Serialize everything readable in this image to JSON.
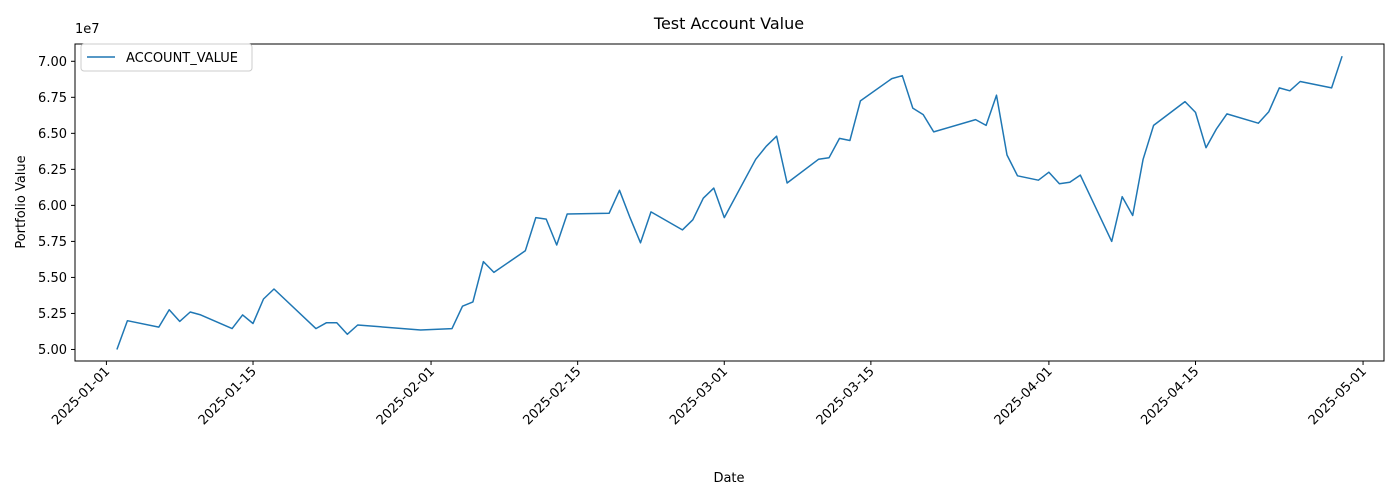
{
  "chart_data": {
    "type": "line",
    "title": "Test Account Value",
    "xlabel": "Date",
    "ylabel": "Portfolio Value",
    "y_multiplier_label": "1e7",
    "ylim": [
      4.92,
      7.12
    ],
    "xlim": [
      "2024-12-29",
      "2025-05-03"
    ],
    "grid": false,
    "legend_position": "upper-left",
    "line_color": "#1f77b4",
    "x_ticks": [
      "2025-01-01",
      "2025-01-15",
      "2025-02-01",
      "2025-02-15",
      "2025-03-01",
      "2025-03-15",
      "2025-04-01",
      "2025-04-15",
      "2025-05-01"
    ],
    "y_ticks": [
      5.0,
      5.25,
      5.5,
      5.75,
      6.0,
      6.25,
      6.5,
      6.75,
      7.0
    ],
    "y_tick_labels": [
      "5.00",
      "5.25",
      "5.50",
      "5.75",
      "6.00",
      "6.25",
      "6.50",
      "6.75",
      "7.00"
    ],
    "series": [
      {
        "name": "ACCOUNT_VALUE",
        "x": [
          "2025-01-02",
          "2025-01-03",
          "2025-01-06",
          "2025-01-07",
          "2025-01-08",
          "2025-01-09",
          "2025-01-10",
          "2025-01-13",
          "2025-01-14",
          "2025-01-15",
          "2025-01-16",
          "2025-01-17",
          "2025-01-21",
          "2025-01-22",
          "2025-01-23",
          "2025-01-24",
          "2025-01-25",
          "2025-01-31",
          "2025-02-03",
          "2025-02-04",
          "2025-02-05",
          "2025-02-06",
          "2025-02-07",
          "2025-02-10",
          "2025-02-11",
          "2025-02-12",
          "2025-02-13",
          "2025-02-14",
          "2025-02-18",
          "2025-02-19",
          "2025-02-20",
          "2025-02-21",
          "2025-02-22",
          "2025-02-25",
          "2025-02-26",
          "2025-02-27",
          "2025-02-28",
          "2025-03-01",
          "2025-03-04",
          "2025-03-05",
          "2025-03-06",
          "2025-03-07",
          "2025-03-10",
          "2025-03-11",
          "2025-03-12",
          "2025-03-13",
          "2025-03-14",
          "2025-03-17",
          "2025-03-18",
          "2025-03-19",
          "2025-03-20",
          "2025-03-21",
          "2025-03-25",
          "2025-03-26",
          "2025-03-27",
          "2025-03-28",
          "2025-03-29",
          "2025-03-31",
          "2025-04-01",
          "2025-04-02",
          "2025-04-03",
          "2025-04-04",
          "2025-04-07",
          "2025-04-08",
          "2025-04-09",
          "2025-04-10",
          "2025-04-11",
          "2025-04-14",
          "2025-04-15",
          "2025-04-16",
          "2025-04-17",
          "2025-04-18",
          "2025-04-21",
          "2025-04-22",
          "2025-04-23",
          "2025-04-24",
          "2025-04-25",
          "2025-04-28",
          "2025-04-29"
        ],
        "values": [
          5.0,
          5.2,
          5.155,
          5.275,
          5.195,
          5.26,
          5.24,
          5.145,
          5.24,
          5.18,
          5.35,
          5.42,
          5.145,
          5.185,
          5.185,
          5.105,
          5.17,
          5.135,
          5.145,
          5.3,
          5.33,
          5.61,
          5.535,
          5.685,
          5.915,
          5.905,
          5.725,
          5.94,
          5.945,
          6.105,
          5.915,
          5.74,
          5.955,
          5.83,
          5.9,
          6.05,
          6.12,
          5.915,
          6.32,
          6.41,
          6.48,
          6.155,
          6.32,
          6.33,
          6.465,
          6.45,
          6.725,
          6.88,
          6.9,
          6.675,
          6.63,
          6.51,
          6.595,
          6.555,
          6.765,
          6.35,
          6.205,
          6.175,
          6.23,
          6.15,
          6.16,
          6.21,
          5.75,
          6.06,
          5.93,
          6.32,
          6.555,
          6.72,
          6.645,
          6.4,
          6.53,
          6.635,
          6.57,
          6.65,
          6.815,
          6.795,
          6.86,
          6.815,
          7.035
        ]
      }
    ]
  }
}
